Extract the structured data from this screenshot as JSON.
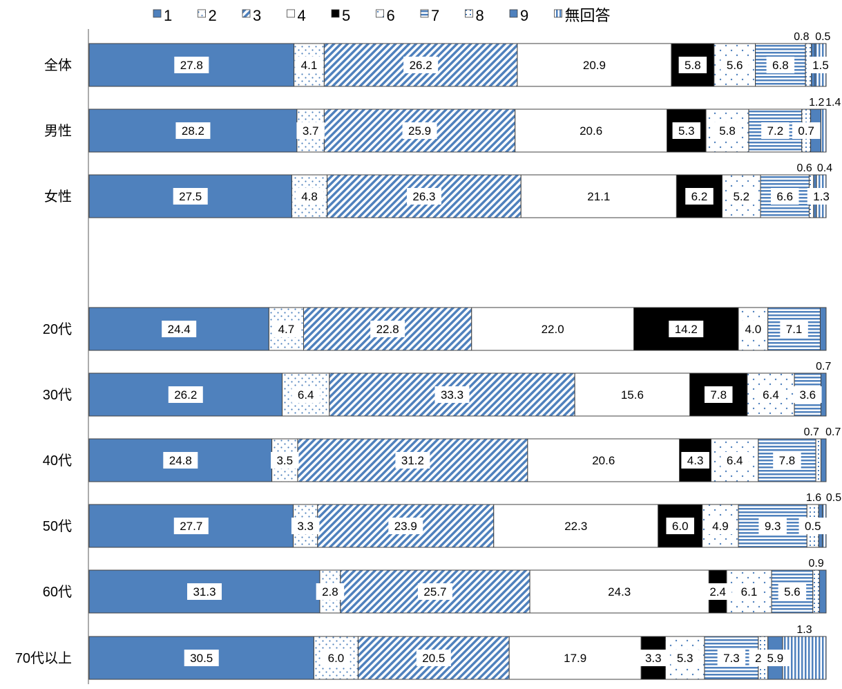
{
  "chart_data": {
    "type": "bar",
    "orientation": "horizontal-stacked-100",
    "legend_position": "top",
    "grid": false,
    "title": "",
    "xlabel": "",
    "ylabel": "",
    "xlim": [
      0,
      100
    ],
    "categories": [
      "全体",
      "男性",
      "女性",
      "",
      "20代",
      "30代",
      "40代",
      "50代",
      "60代",
      "70代以上"
    ],
    "legend": [
      "1",
      "2",
      "3",
      "4",
      "5",
      "6",
      "7",
      "8",
      "9",
      "無回答"
    ],
    "series": [
      {
        "name": "1",
        "color": "#4f81bd",
        "pattern": "solid",
        "values": [
          27.8,
          28.2,
          27.5,
          null,
          24.4,
          26.2,
          24.8,
          27.7,
          31.3,
          30.5
        ]
      },
      {
        "name": "2",
        "color": "#ffffff",
        "pattern": "dots",
        "values": [
          4.1,
          3.7,
          4.8,
          null,
          4.7,
          6.4,
          3.5,
          3.3,
          2.8,
          6.0
        ]
      },
      {
        "name": "3",
        "color": "#4f81bd",
        "pattern": "diag",
        "values": [
          26.2,
          25.9,
          26.3,
          null,
          22.8,
          33.3,
          31.2,
          23.9,
          25.7,
          20.5
        ]
      },
      {
        "name": "4",
        "color": "#ffffff",
        "pattern": "none",
        "values": [
          20.9,
          20.6,
          21.1,
          null,
          22.0,
          15.6,
          20.6,
          22.3,
          24.3,
          17.9
        ]
      },
      {
        "name": "5",
        "color": "#000000",
        "pattern": "solid",
        "values": [
          5.8,
          5.3,
          6.2,
          null,
          14.2,
          7.8,
          4.3,
          6.0,
          2.4,
          3.3
        ]
      },
      {
        "name": "6",
        "color": "#ffffff",
        "pattern": "sparse",
        "values": [
          5.6,
          5.8,
          5.2,
          null,
          4.0,
          6.4,
          6.4,
          4.9,
          6.1,
          5.3
        ]
      },
      {
        "name": "7",
        "color": "#4f81bd",
        "pattern": "hlines",
        "values": [
          6.8,
          7.2,
          6.6,
          null,
          7.1,
          3.6,
          7.8,
          9.3,
          5.6,
          7.3
        ]
      },
      {
        "name": "8",
        "color": "#ffffff",
        "pattern": "grid",
        "values": [
          0.8,
          1.2,
          0.6,
          null,
          0.0,
          0.0,
          0.7,
          1.6,
          0.9,
          1.3
        ]
      },
      {
        "name": "9",
        "color": "#4f81bd",
        "pattern": "solid",
        "values": [
          0.5,
          1.4,
          0.4,
          null,
          0.8,
          0.7,
          0.7,
          0.5,
          0.9,
          2.0
        ]
      },
      {
        "name": "無回答",
        "color": "#4f81bd",
        "pattern": "vlines",
        "values": [
          1.5,
          0.7,
          1.3,
          null,
          0.0,
          0.0,
          0.0,
          0.5,
          0.0,
          5.9
        ]
      }
    ],
    "data_labels": [
      {
        "row": 0,
        "values": [
          "27.8",
          "4.1",
          "26.2",
          "20.9",
          "5.8",
          "5.6",
          "6.8",
          "1.5"
        ],
        "above": [
          "0.8",
          "0.5"
        ]
      },
      {
        "row": 1,
        "values": [
          "28.2",
          "3.7",
          "25.9",
          "20.6",
          "5.3",
          "5.8",
          "7.2",
          "0.7"
        ],
        "above": [
          "1.2",
          "1.4"
        ]
      },
      {
        "row": 2,
        "values": [
          "27.5",
          "4.8",
          "26.3",
          "21.1",
          "6.2",
          "5.2",
          "6.6",
          "1.3"
        ],
        "above": [
          "0.6",
          "0.4"
        ]
      },
      {
        "row": 4,
        "values": [
          "24.4",
          "4.7",
          "22.8",
          "22.0",
          "14.2",
          "4.0",
          "7.1",
          "0.8"
        ],
        "above": []
      },
      {
        "row": 5,
        "values": [
          "26.2",
          "6.4",
          "33.3",
          "15.6",
          "7.8",
          "6.4",
          "3.6"
        ],
        "above": [
          "0.7"
        ]
      },
      {
        "row": 6,
        "values": [
          "24.8",
          "3.5",
          "31.2",
          "20.6",
          "4.3",
          "6.4",
          "7.8"
        ],
        "above": [
          "0.7",
          "0.7"
        ]
      },
      {
        "row": 7,
        "values": [
          "27.7",
          "3.3",
          "23.9",
          "22.3",
          "6.0",
          "4.9",
          "9.3",
          "0.5"
        ],
        "above": [
          "1.6",
          "0.5"
        ]
      },
      {
        "row": 8,
        "values": [
          "31.3",
          "2.8",
          "25.7",
          "24.3",
          "2.4",
          "6.1",
          "5.6",
          "0.9"
        ],
        "above": [
          "0.9"
        ]
      },
      {
        "row": 9,
        "values": [
          "30.5",
          "6.0",
          "20.5",
          "17.9",
          "3.3",
          "5.3",
          "7.3",
          "2.0",
          "5.9"
        ],
        "above": [
          "1.3"
        ]
      }
    ]
  }
}
